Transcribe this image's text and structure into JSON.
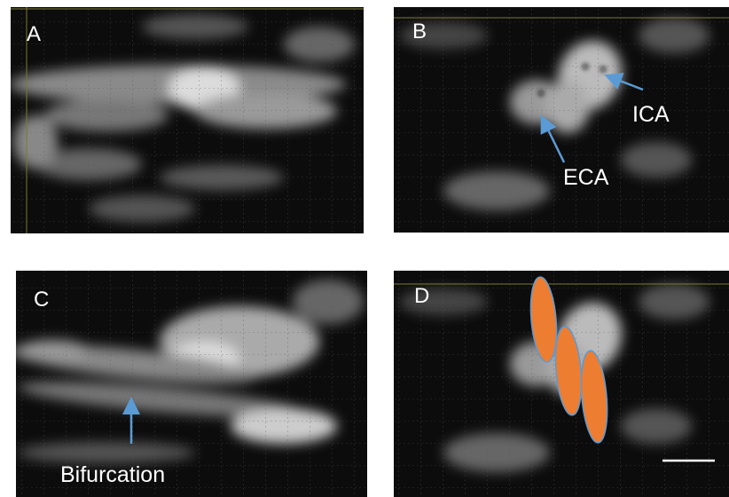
{
  "panels": [
    {
      "label": "A"
    },
    {
      "label": "B",
      "annotations": [
        "ICA",
        "ECA"
      ]
    },
    {
      "label": "C",
      "annotations": [
        "Bifurcation"
      ]
    },
    {
      "label": "D"
    }
  ]
}
